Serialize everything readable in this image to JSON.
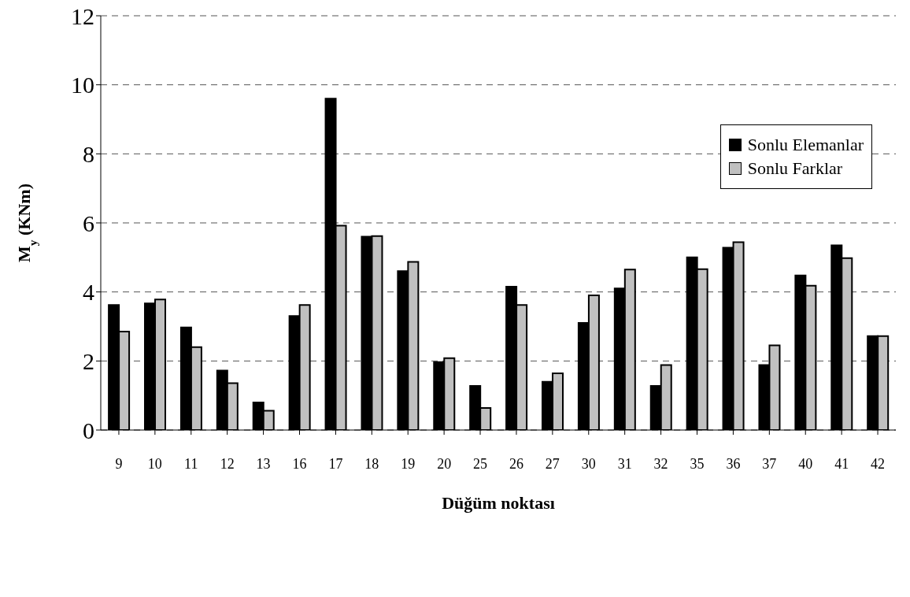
{
  "chart_data": {
    "type": "bar",
    "xlabel": "Düğüm noktası",
    "ylabel": "M$_{y}$ (KNm)",
    "categories": [
      "9",
      "10",
      "11",
      "12",
      "13",
      "16",
      "17",
      "18",
      "19",
      "20",
      "25",
      "26",
      "27",
      "30",
      "31",
      "32",
      "35",
      "36",
      "37",
      "40",
      "41",
      "42"
    ],
    "series": [
      {
        "name": "Sonlu Elemanlar",
        "color": "#000000",
        "values": [
          3.62,
          3.67,
          2.97,
          1.72,
          0.8,
          3.3,
          9.6,
          5.6,
          4.6,
          1.97,
          1.28,
          4.15,
          1.4,
          3.1,
          4.1,
          1.28,
          5.0,
          5.28,
          1.88,
          4.48,
          5.35,
          2.72
        ]
      },
      {
        "name": "Sonlu Farklar",
        "color": "#c0c0c0",
        "values": [
          2.85,
          3.78,
          2.4,
          1.36,
          0.56,
          3.62,
          5.92,
          5.62,
          4.87,
          2.08,
          0.64,
          3.62,
          1.64,
          3.9,
          4.65,
          1.88,
          4.66,
          5.44,
          2.45,
          4.18,
          4.98,
          2.72
        ]
      }
    ],
    "ylim": [
      0,
      12
    ],
    "yticks": [
      0,
      2,
      4,
      6,
      8,
      10,
      12
    ],
    "grid": "y",
    "legend": "top right"
  }
}
